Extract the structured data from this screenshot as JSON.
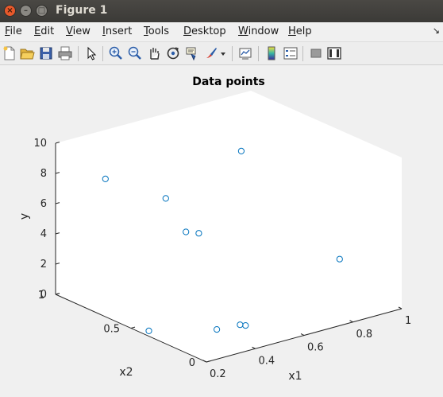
{
  "window": {
    "title": "Figure 1",
    "buttons": {
      "close": "×",
      "minimize": "–",
      "maximize": "□"
    }
  },
  "menubar": {
    "items": [
      {
        "label": "File",
        "mnemonic": "F",
        "rest": "ile"
      },
      {
        "label": "Edit",
        "mnemonic": "E",
        "rest": "dit"
      },
      {
        "label": "View",
        "mnemonic": "V",
        "rest": "iew"
      },
      {
        "label": "Insert",
        "mnemonic": "I",
        "rest": "nsert"
      },
      {
        "label": "Tools",
        "mnemonic": "T",
        "rest": "ools"
      },
      {
        "label": "Desktop",
        "mnemonic": "D",
        "rest": "esktop"
      },
      {
        "label": "Window",
        "mnemonic": "W",
        "rest": "indow"
      },
      {
        "label": "Help",
        "mnemonic": "H",
        "rest": "elp"
      }
    ],
    "overflow_icon": "↘"
  },
  "toolbar": {
    "icons": [
      "new-figure-icon",
      "open-file-icon",
      "save-icon",
      "print-icon",
      "edit-plot-icon",
      "zoom-in-icon",
      "zoom-out-icon",
      "pan-icon",
      "rotate-3d-icon",
      "data-cursor-icon",
      "brush-icon",
      "brush-dropdown-icon",
      "link-plot-icon",
      "colorbar-icon",
      "legend-icon",
      "hide-plot-tools-icon",
      "show-plot-tools-icon"
    ]
  },
  "chart_data": {
    "type": "scatter3d",
    "title": "Data points",
    "xlabel": "x1",
    "ylabel": "x2",
    "zlabel": "y",
    "xlim": [
      0.2,
      1
    ],
    "ylim": [
      0,
      1
    ],
    "zlim": [
      0,
      10
    ],
    "xticks": [
      0.2,
      0.4,
      0.6,
      0.8,
      1
    ],
    "yticks": [
      0,
      0.5,
      1
    ],
    "zticks": [
      0,
      2,
      4,
      6,
      8,
      10
    ],
    "xtick_labels": [
      "0.2",
      "0.4",
      "0.6",
      "0.8",
      "1"
    ],
    "ytick_labels": [
      "0",
      "0.5",
      "1"
    ],
    "ztick_labels": [
      "0",
      "2",
      "4",
      "6",
      "8",
      "10"
    ],
    "marker": "circle",
    "marker_color": "#0072bd",
    "points": [
      {
        "x1": 0.33,
        "x2": 0.88,
        "y": 7.6
      },
      {
        "x1": 0.33,
        "x2": 0.48,
        "y": 8.1
      },
      {
        "x1": 0.32,
        "x2": 0.33,
        "y": 6.6
      },
      {
        "x1": 0.8,
        "x2": 0.74,
        "y": 8.0
      },
      {
        "x1": 0.62,
        "x2": 0.73,
        "y": 3.4
      },
      {
        "x1": 0.9,
        "x2": 0.25,
        "y": 2.6
      },
      {
        "x1": 0.36,
        "x2": 0.19,
        "y": 0.6
      },
      {
        "x1": 0.23,
        "x2": 0.43,
        "y": 0.0
      },
      {
        "x1": 0.48,
        "x2": 0.23,
        "y": 0.2
      },
      {
        "x1": 0.49,
        "x2": 0.21,
        "y": 0.2
      }
    ]
  }
}
